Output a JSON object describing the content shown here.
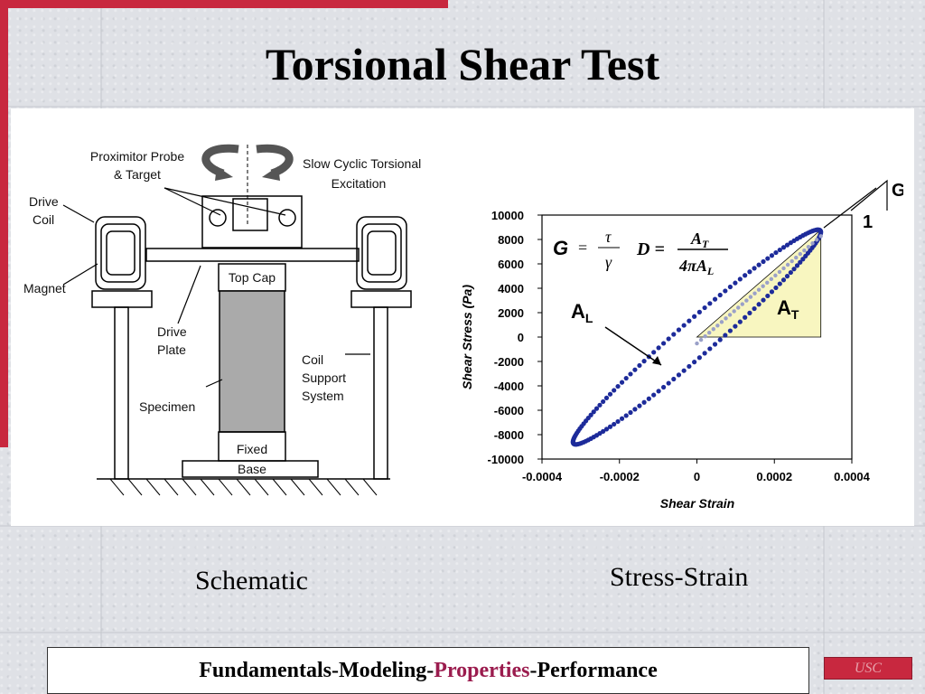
{
  "title": "Torsional Shear Test",
  "schematic": {
    "labels": {
      "proximitor_line1": "Proximitor Probe",
      "proximitor_line2": "& Target",
      "excitation_line1": "Slow Cyclic Torsional",
      "excitation_line2": "Excitation",
      "drive_coil_line1": "Drive",
      "drive_coil_line2": "Coil",
      "magnet": "Magnet",
      "top_cap": "Top Cap",
      "drive_plate_line1": "Drive",
      "drive_plate_line2": "Plate",
      "coil_support_line1": "Coil",
      "coil_support_line2": "Support",
      "coil_support_line3": "System",
      "specimen": "Specimen",
      "fixed_base_line1": "Fixed",
      "fixed_base_line2": "Base"
    }
  },
  "chart_data": {
    "type": "scatter",
    "xlabel": "Shear Strain",
    "ylabel": "Shear Stress (Pa)",
    "xlim": [
      -0.0004,
      0.0004
    ],
    "ylim": [
      -10000,
      10000
    ],
    "x_ticks": [
      "-0.0004",
      "-0.0002",
      "0",
      "0.0002",
      "0.0004"
    ],
    "y_ticks": [
      "10000",
      "8000",
      "6000",
      "4000",
      "2000",
      "0",
      "-2000",
      "-4000",
      "-6000",
      "-8000",
      "-10000"
    ],
    "loop": {
      "x_amplitude": 0.00032,
      "y_amplitude": 8800,
      "phase_deg": 35,
      "points": 150
    },
    "triangle": {
      "x0": 0,
      "y0": 0,
      "x1": 0.00032,
      "y1": 8800
    },
    "annotations": {
      "area_loop_label": "A",
      "area_loop_sub": "L",
      "area_triangle_label": "A",
      "area_triangle_sub": "T",
      "modulus_symbol": "G",
      "slope_run": "1",
      "g_formula_lhs": "G",
      "g_formula_num": "τ",
      "g_formula_den": "γ",
      "d_formula_lhs": "D =",
      "d_formula_num": "A",
      "d_formula_num_sub": "T",
      "d_formula_den": "4πA",
      "d_formula_den_sub": "L"
    },
    "colors": {
      "loop": "#1d2b9a",
      "triangle_fill": "#f8f6c0",
      "triangle_line": "#9aa0c8"
    }
  },
  "captions": {
    "left": "Schematic",
    "right": "Stress-Strain"
  },
  "footer": {
    "part1": "Fundamentals-Modeling-",
    "accent": "Properties",
    "part2": "-Performance"
  },
  "badge": "USC",
  "colors": {
    "accent_red": "#c8283f",
    "footer_accent": "#9b1c4e"
  }
}
